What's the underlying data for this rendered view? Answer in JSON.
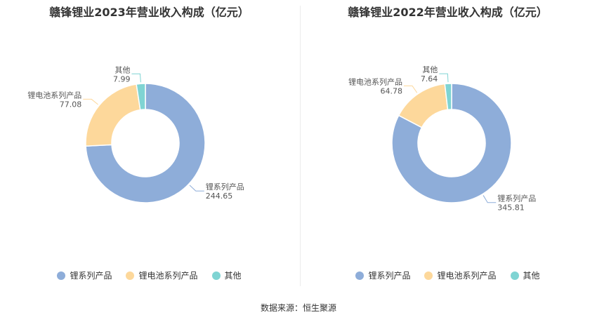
{
  "chart_data": [
    {
      "type": "pie",
      "title": "赣锋锂业2023年营业收入构成（亿元）",
      "categories": [
        "锂系列产品",
        "锂电池系列产品",
        "其他"
      ],
      "values": [
        244.65,
        77.08,
        7.99
      ],
      "colors": [
        "#8eadd9",
        "#fdd89b",
        "#7fd4d3"
      ],
      "donut": true,
      "legend_position": "bottom"
    },
    {
      "type": "pie",
      "title": "赣锋锂业2022年营业收入构成（亿元）",
      "categories": [
        "锂系列产品",
        "锂电池系列产品",
        "其他"
      ],
      "values": [
        345.81,
        64.78,
        7.64
      ],
      "colors": [
        "#8eadd9",
        "#fdd89b",
        "#7fd4d3"
      ],
      "donut": true,
      "legend_position": "bottom"
    }
  ],
  "source": "数据来源：恒生聚源"
}
